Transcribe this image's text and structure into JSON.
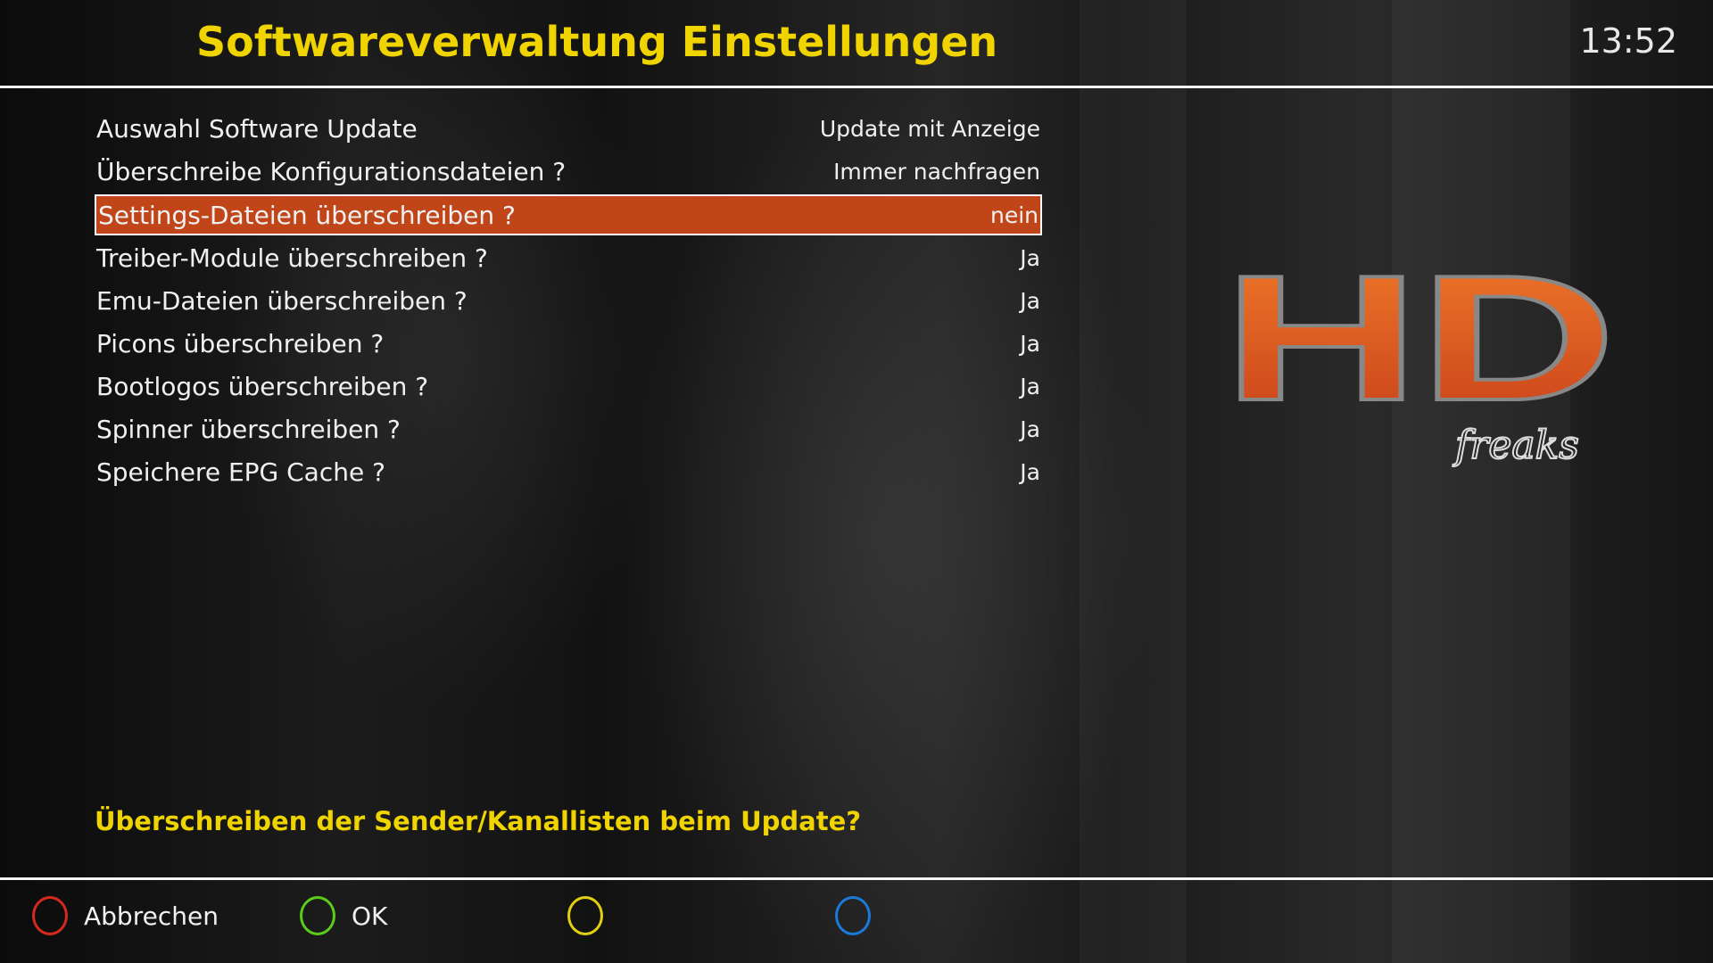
{
  "header": {
    "title": "Softwareverwaltung Einstellungen",
    "clock": "13:52"
  },
  "settings": [
    {
      "label": "Auswahl Software Update",
      "value": "Update mit Anzeige"
    },
    {
      "label": "Überschreibe Konfigurationsdateien ?",
      "value": "Immer nachfragen"
    },
    {
      "label": "Settings-Dateien überschreiben ?",
      "value": "nein",
      "selected": true
    },
    {
      "label": "Treiber-Module überschreiben ?",
      "value": "Ja"
    },
    {
      "label": "Emu-Dateien überschreiben ?",
      "value": "Ja"
    },
    {
      "label": "Picons überschreiben ?",
      "value": "Ja"
    },
    {
      "label": "Bootlogos überschreiben ?",
      "value": "Ja"
    },
    {
      "label": "Spinner überschreiben ?",
      "value": "Ja"
    },
    {
      "label": "Speichere EPG Cache ?",
      "value": "Ja"
    }
  ],
  "help_text": "Überschreiben der Sender/Kanallisten beim Update?",
  "logo": {
    "text": "HD",
    "subtext": "freaks"
  },
  "buttons": [
    {
      "color": "#d42a1e",
      "label": "Abbrechen"
    },
    {
      "color": "#5ccc1a",
      "label": "OK"
    },
    {
      "color": "#e0d010",
      "label": ""
    },
    {
      "color": "#1a7ad8",
      "label": ""
    }
  ],
  "colors": {
    "accent": "#f0d400",
    "selection": "#c0461a"
  }
}
